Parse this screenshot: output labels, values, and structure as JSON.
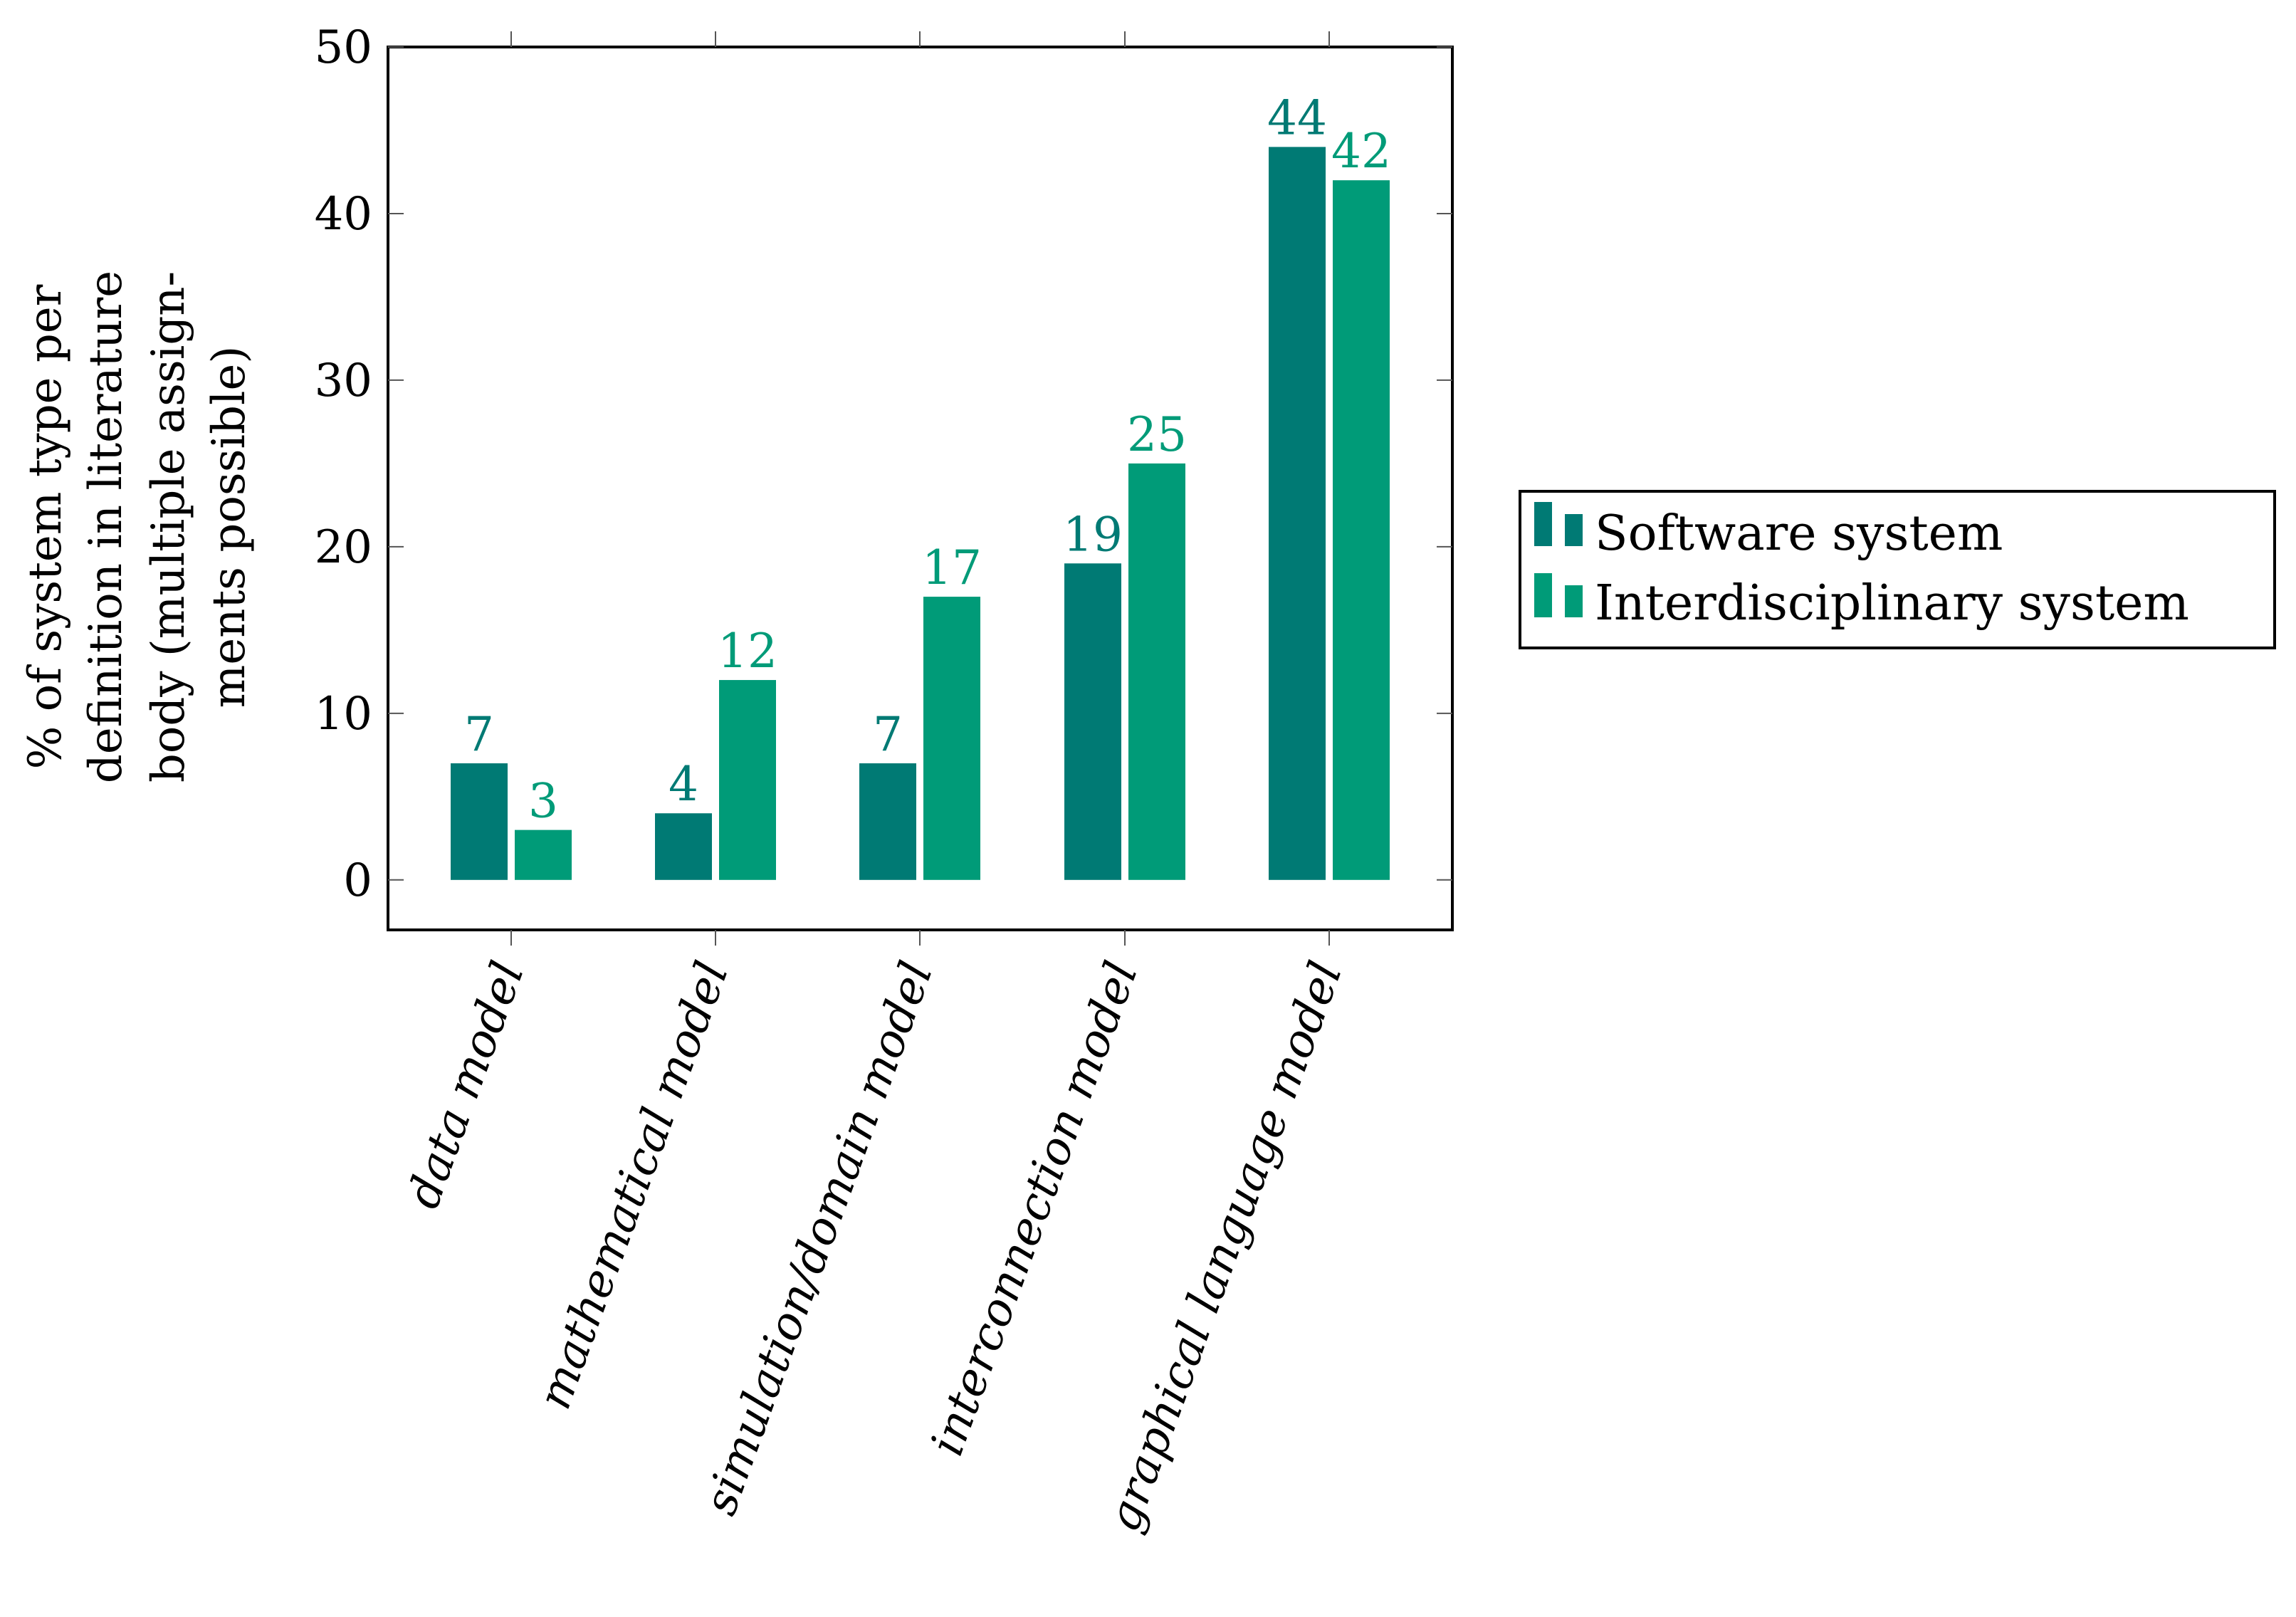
{
  "chart_data": {
    "type": "bar",
    "categories": [
      "data model",
      "mathematical model",
      "simulation/domain model",
      "interconnection model",
      "graphical language model"
    ],
    "series": [
      {
        "name": "Software system",
        "values": [
          7,
          4,
          7,
          19,
          44
        ],
        "color": "#007A74"
      },
      {
        "name": "Interdisciplinary system",
        "values": [
          3,
          12,
          17,
          25,
          42
        ],
        "color": "#009B78"
      }
    ],
    "ylabel_lines": [
      "% of system type per",
      "definition in literature",
      "body (multiple assign-",
      "ments possible)"
    ],
    "ylim": [
      -3,
      50
    ],
    "yticks": [
      0,
      10,
      20,
      30,
      40,
      50
    ],
    "legend_position": "right",
    "grid": false
  }
}
